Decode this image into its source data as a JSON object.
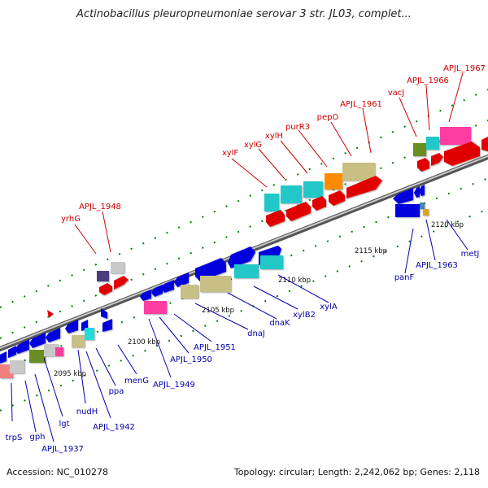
{
  "title": "Actinobacillus pleuropneumoniae serovar 3 str. JL03, complet...",
  "footer": {
    "accession": "Accession: NC_010278",
    "stats": "Topology: circular; Length: 2,242,062 bp; Genes: 2,118"
  },
  "colors": {
    "axis": "#808080",
    "top_labels": "#cc0000",
    "bottom_labels": "#0000aa",
    "tick_marks": "#008000"
  },
  "scale_labels": [
    "2095 kbp",
    "2100 kbp",
    "2105 kbp",
    "2110 kbp",
    "2115 kbp",
    "2120 kbp"
  ],
  "top_gene_labels": [
    "yrhG",
    "APJL_1948",
    "xylF",
    "xylG",
    "xylH",
    "purR3",
    "pepO",
    "APJL_1961",
    "vacJ",
    "APJL_1966",
    "APJL_1967"
  ],
  "bottom_gene_labels": [
    "trpS",
    "gph",
    "APJL_1937",
    "lgt",
    "nudH",
    "APJL_1942",
    "ppa",
    "menG",
    "APJL_1949",
    "APJL_1950",
    "APJL_1951",
    "dnaJ",
    "dnaK",
    "xylB2",
    "xylA",
    "panF",
    "APJL_1963",
    "metJ"
  ]
}
